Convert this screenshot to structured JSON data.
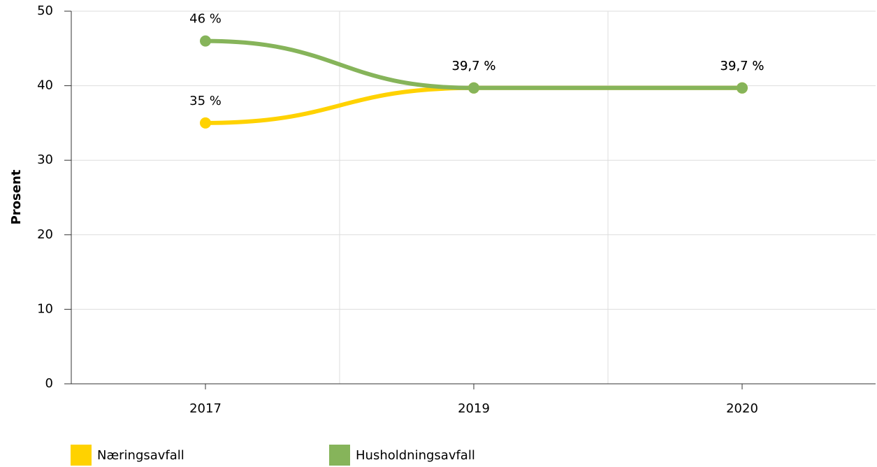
{
  "chart_data": {
    "type": "line",
    "y_label": "Prosent",
    "categories": [
      "2017",
      "2019",
      "2020"
    ],
    "series": [
      {
        "name": "Næringsavfall",
        "color": "#ffd200",
        "values": [
          35,
          39.7,
          39.7
        ],
        "value_labels": [
          "35 %",
          "39,7 %",
          "39,7 %"
        ]
      },
      {
        "name": "Husholdningsavfall",
        "color": "#86b45a",
        "values": [
          46,
          39.7,
          39.7
        ],
        "value_labels": [
          "46 %",
          "39,7 %",
          "39,7 %"
        ]
      }
    ],
    "ylim": [
      0,
      50
    ],
    "yticks": [
      0,
      10,
      20,
      30,
      40,
      50
    ],
    "grid": true
  }
}
